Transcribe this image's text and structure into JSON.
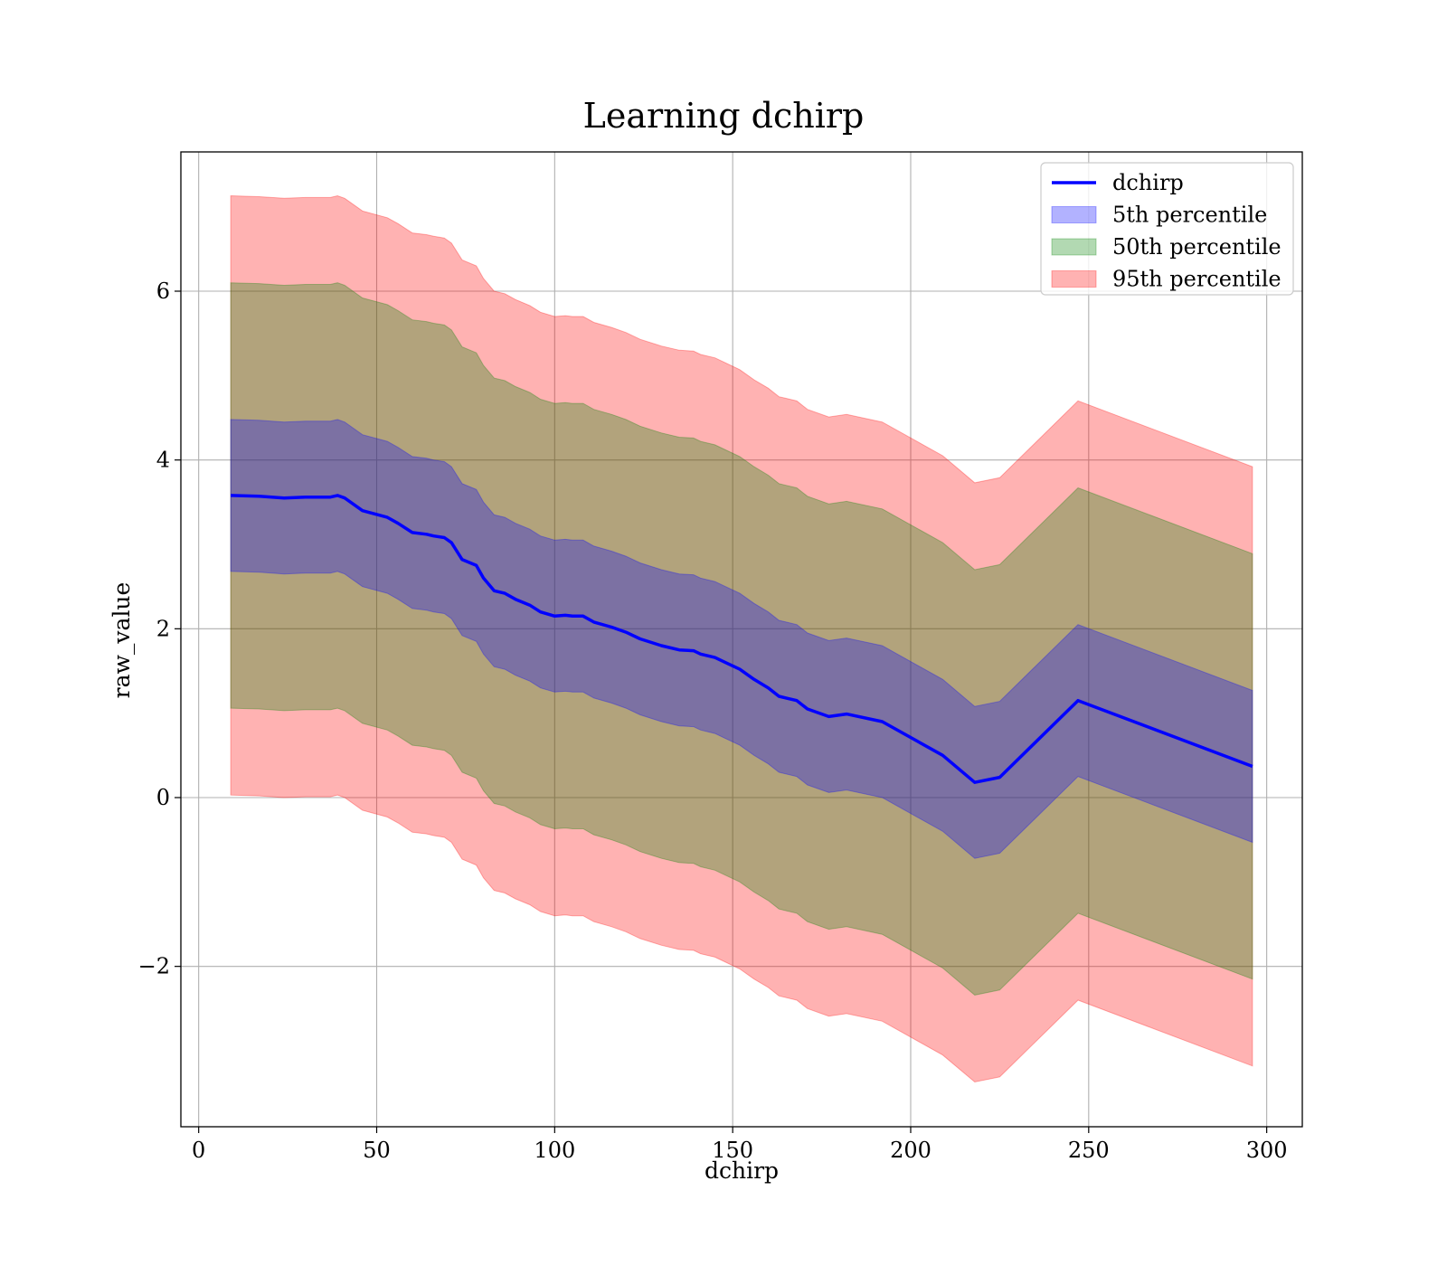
{
  "chart_data": {
    "type": "area",
    "title": "Learning dchirp",
    "xlabel": "dchirp",
    "ylabel": "raw_value",
    "xlim": [
      -5,
      310
    ],
    "ylim": [
      -3.9,
      7.65
    ],
    "xticks": [
      0,
      50,
      100,
      150,
      200,
      250,
      300
    ],
    "xtick_labels": [
      "0",
      "50",
      "100",
      "150",
      "200",
      "250",
      "300"
    ],
    "yticks": [
      -2,
      0,
      2,
      4,
      6
    ],
    "ytick_labels": [
      "−2",
      "0",
      "2",
      "4",
      "6"
    ],
    "grid": true,
    "legend_placement": "top-right",
    "legend": [
      {
        "label": "dchirp",
        "kind": "line",
        "color": "#0000ff"
      },
      {
        "label": "5th percentile",
        "kind": "patch",
        "color": "#0000ff"
      },
      {
        "label": "50th percentile",
        "kind": "patch",
        "color": "#008000"
      },
      {
        "label": "95th percentile",
        "kind": "patch",
        "color": "#ff0000"
      }
    ],
    "x": [
      9,
      17,
      24,
      30,
      37,
      39,
      41,
      46,
      53,
      56,
      60,
      64,
      66,
      69,
      71,
      74,
      78,
      80,
      83,
      86,
      89,
      93,
      96,
      100,
      103,
      105,
      108,
      111,
      116,
      120,
      124,
      130,
      135,
      139,
      141,
      145,
      148,
      152,
      156,
      160,
      163,
      165,
      168,
      171,
      177,
      182,
      192,
      209,
      218,
      225,
      247,
      296
    ],
    "series": [
      {
        "name": "dchirp",
        "color": "#0000ff",
        "values": [
          3.58,
          3.57,
          3.55,
          3.56,
          3.56,
          3.58,
          3.55,
          3.4,
          3.32,
          3.25,
          3.14,
          3.12,
          3.1,
          3.08,
          3.02,
          2.82,
          2.75,
          2.6,
          2.45,
          2.42,
          2.35,
          2.28,
          2.2,
          2.15,
          2.16,
          2.15,
          2.15,
          2.08,
          2.02,
          1.96,
          1.88,
          1.8,
          1.75,
          1.74,
          1.7,
          1.66,
          1.6,
          1.52,
          1.4,
          1.3,
          1.2,
          1.18,
          1.15,
          1.05,
          0.96,
          0.99,
          0.9,
          0.5,
          0.18,
          0.24,
          1.15,
          0.37
        ]
      }
    ],
    "bands": [
      {
        "name": "95th percentile",
        "color": "#ff0000",
        "offset": 3.55
      },
      {
        "name": "50th percentile",
        "color": "#008000",
        "offset": 2.52
      },
      {
        "name": "5th percentile",
        "color": "#0000ff",
        "offset": 0.9
      }
    ]
  }
}
